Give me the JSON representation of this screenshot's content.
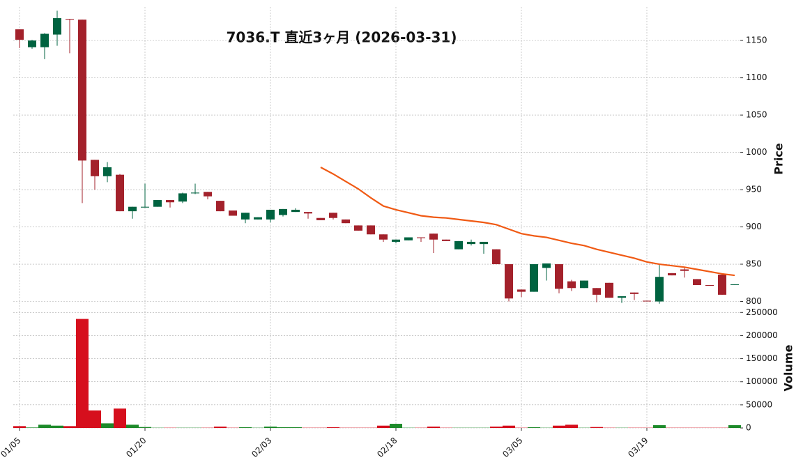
{
  "chart_data": {
    "type": "candlestick",
    "title": "7036.T 直近3ヶ月 (2026-03-31)",
    "categories": [
      "01/05",
      null,
      null,
      null,
      null,
      null,
      null,
      null,
      null,
      null,
      "01/20",
      null,
      null,
      null,
      null,
      null,
      null,
      null,
      null,
      null,
      "02/03",
      null,
      null,
      null,
      null,
      null,
      null,
      null,
      null,
      null,
      "02/18",
      null,
      null,
      null,
      null,
      null,
      null,
      null,
      null,
      null,
      "03/05",
      null,
      null,
      null,
      null,
      null,
      null,
      null,
      null,
      null,
      "03/19",
      null,
      null,
      null,
      null,
      null,
      null,
      null
    ],
    "open": [
      1165,
      1141,
      1141,
      1158,
      1179,
      1178,
      990,
      968,
      970,
      921,
      926,
      927,
      936,
      934,
      945,
      947,
      935,
      922,
      910,
      910,
      910,
      916,
      920,
      920,
      912,
      919,
      910,
      902,
      902,
      890,
      880,
      882,
      886,
      891,
      883,
      870,
      877,
      877,
      870,
      850,
      816,
      813,
      845,
      850,
      827,
      818,
      818,
      825,
      805,
      812,
      801,
      800,
      838,
      843,
      830,
      822,
      836,
      822
    ],
    "high": [
      1165,
      1151,
      1160,
      1190,
      1179,
      1178,
      990,
      987,
      971,
      927,
      958,
      936,
      936,
      946,
      958,
      947,
      935,
      922,
      919,
      913,
      923,
      924,
      925,
      920,
      912,
      919,
      910,
      902,
      902,
      890,
      883,
      886,
      886,
      891,
      883,
      881,
      883,
      880,
      870,
      850,
      816,
      850,
      851,
      850,
      829,
      828,
      818,
      825,
      807,
      812,
      801,
      849,
      838,
      845,
      830,
      822,
      836,
      823
    ],
    "low": [
      1140,
      1139,
      1125,
      1143,
      1133,
      932,
      950,
      960,
      921,
      911,
      926,
      927,
      926,
      932,
      944,
      937,
      921,
      915,
      905,
      910,
      906,
      914,
      920,
      911,
      909,
      910,
      905,
      895,
      890,
      880,
      878,
      882,
      880,
      865,
      881,
      870,
      875,
      864,
      850,
      800,
      806,
      813,
      828,
      811,
      814,
      818,
      799,
      805,
      798,
      802,
      800,
      797,
      835,
      832,
      822,
      821,
      809,
      822
    ],
    "close": [
      1151,
      1150,
      1159,
      1180,
      1178,
      989,
      968,
      980,
      921,
      927,
      927,
      936,
      933,
      945,
      946,
      941,
      921,
      915,
      919,
      913,
      923,
      924,
      923,
      918,
      909,
      912,
      905,
      895,
      890,
      883,
      883,
      886,
      885,
      883,
      881,
      881,
      880,
      880,
      850,
      804,
      813,
      850,
      851,
      817,
      818,
      828,
      809,
      805,
      807,
      810,
      800,
      833,
      835,
      841,
      822,
      821,
      809,
      823
    ],
    "ma": {
      "color": "#f05a14",
      "values": [
        null,
        null,
        null,
        null,
        null,
        null,
        null,
        null,
        null,
        null,
        null,
        null,
        null,
        null,
        null,
        null,
        null,
        null,
        null,
        null,
        null,
        null,
        null,
        null,
        980,
        971,
        961,
        951,
        939,
        928,
        923,
        919,
        915,
        913,
        912,
        910,
        908,
        906,
        903,
        897,
        891,
        888,
        886,
        882,
        878,
        875,
        870,
        866,
        862,
        858,
        853,
        850,
        848,
        846,
        843,
        840,
        837,
        835
      ]
    },
    "volume": [
      4000,
      1000,
      7000,
      5000,
      4000,
      236000,
      38000,
      10000,
      42000,
      7000,
      2000,
      500,
      500,
      500,
      500,
      500,
      3000,
      500,
      1500,
      500,
      3000,
      1500,
      1500,
      500,
      500,
      1500,
      500,
      500,
      500,
      5000,
      9000,
      500,
      500,
      3000,
      500,
      500,
      500,
      500,
      3000,
      5000,
      500,
      1500,
      500,
      5000,
      7000,
      500,
      2000,
      500,
      500,
      500,
      500,
      6000,
      500,
      500,
      500,
      500,
      500,
      6000
    ],
    "up_color": "#006340",
    "down_color": "#a3212b",
    "volume_up_color": "#1d8a2a",
    "volume_down_color": "#d60f1d",
    "ylim": [
      793,
      1195
    ],
    "yticks": [
      800,
      850,
      900,
      950,
      1000,
      1050,
      1100,
      1150
    ],
    "ylabel": "Price",
    "volume_ylim": [
      0,
      258000
    ],
    "volume_yticks": [
      0,
      50000,
      100000,
      150000,
      200000,
      250000
    ],
    "volume_label": "Volume",
    "grid": true
  }
}
